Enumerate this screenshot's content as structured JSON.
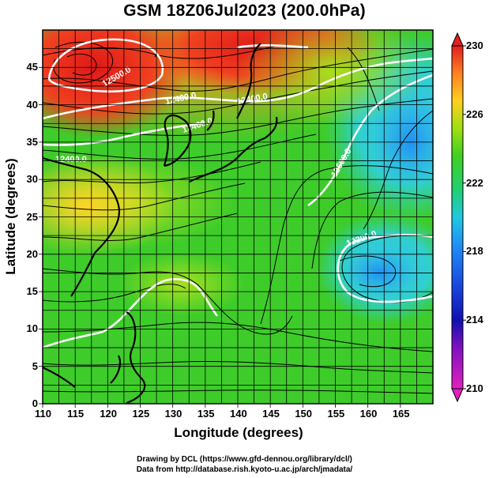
{
  "title": "GSM 18Z06Jul2023 (200.0hPa)",
  "xlabel": "Longitude (degrees)",
  "ylabel": "Latitude  (degrees)",
  "credit_line1": "Drawing by DCL (https://www.gfd-dennou.org/library/dcl/)",
  "credit_line2": "Data from http://database.rish.kyoto-u.ac.jp/arch/jmadata/",
  "chart_data": {
    "type": "heatmap",
    "title": "GSM 18Z06Jul2023 (200.0hPa)",
    "xlabel": "Longitude (degrees)",
    "ylabel": "Latitude  (degrees)",
    "xlim": [
      110,
      170
    ],
    "ylim": [
      0,
      50
    ],
    "x_ticks": [
      110,
      115,
      120,
      125,
      130,
      135,
      140,
      145,
      150,
      155,
      160,
      165
    ],
    "y_ticks": [
      0,
      5,
      10,
      15,
      20,
      25,
      30,
      35,
      40,
      45
    ],
    "grid": true,
    "colorbar": {
      "min": 210,
      "max": 230,
      "tick_values": [
        210,
        214,
        218,
        222,
        226,
        230
      ],
      "colors": [
        "#e020c0",
        "#1010b0",
        "#2070ff",
        "#20c8e0",
        "#20d040",
        "#a0e010",
        "#ffd020",
        "#ff8020",
        "#e02020"
      ]
    },
    "contours": {
      "values": [
        12200.0,
        12400.0,
        12500.0,
        12600.0
      ],
      "labels": [
        "12200.0",
        "12400.0",
        "12500.0",
        "12600.0"
      ]
    },
    "features": {
      "warm_high_center": {
        "lon": 115,
        "lat": 45.5,
        "value": 229.5
      },
      "cold_center": {
        "lon": 160,
        "lat": 19.5,
        "value": 217
      }
    }
  }
}
